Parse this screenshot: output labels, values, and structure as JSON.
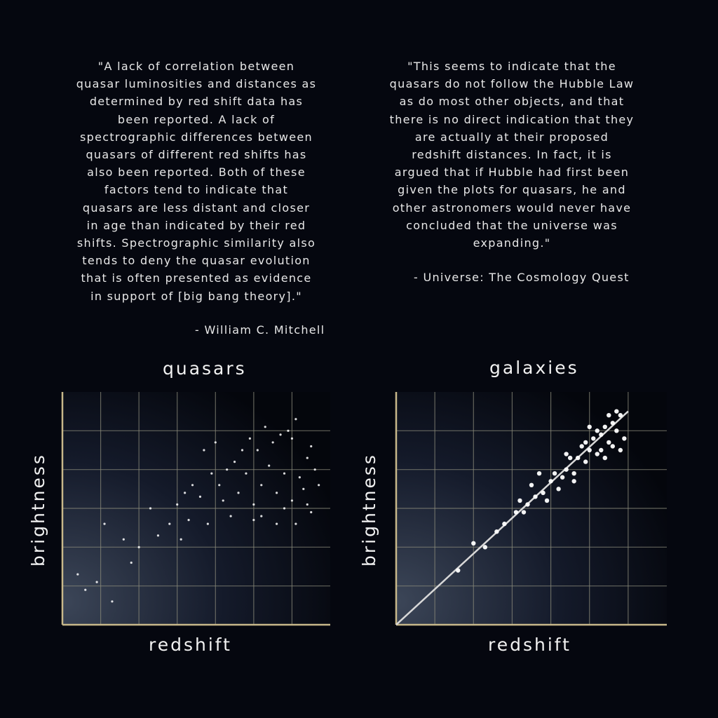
{
  "quotes": {
    "left": {
      "text": "\"A lack of correlation between\nquasar luminosities and distances as\ndetermined by red shift data has\nbeen reported. A lack of\nspectrographic differences between\nquasars of different red shifts has\nalso been reported. Both of these\nfactors tend to indicate that\nquasars are less distant and closer\nin age than indicated by their red\nshifts. Spectrographic similarity also\ntends to deny the quasar evolution\nthat is often presented as evidence\nin support of [big bang theory].\"",
      "attribution": "- William C. Mitchell"
    },
    "right": {
      "text": "\"This seems to indicate that the\nquasars do not follow the Hubble Law\nas do most other objects, and that\nthere is no direct indication that they\nare actually at their proposed\nredshift distances.  In fact, it is\nargued that if Hubble had first been\ngiven the plots for quasars, he and\nother astronomers would never have\nconcluded that the universe was\nexpanding.\"",
      "attribution": "- Universe: The Cosmology Quest"
    }
  },
  "colors": {
    "background": "#05070f",
    "grid": "#8a8a7a",
    "axis": "#c8b88a",
    "points": "#ffffff",
    "fit_line": "#d8d8d8"
  },
  "chart_data": [
    {
      "type": "scatter",
      "title": "quasars",
      "xlabel": "redshift",
      "ylabel": "brightness",
      "xlim": [
        0,
        7
      ],
      "ylim": [
        0,
        6
      ],
      "grid": true,
      "tick_labels": false,
      "series": [
        {
          "points": [
            [
              0.4,
              1.3
            ],
            [
              0.6,
              0.9
            ],
            [
              0.9,
              1.1
            ],
            [
              1.3,
              0.6
            ],
            [
              1.8,
              1.6
            ],
            [
              2.0,
              2.0
            ],
            [
              2.5,
              2.3
            ],
            [
              1.1,
              2.6
            ],
            [
              1.6,
              2.2
            ],
            [
              2.3,
              3.0
            ],
            [
              2.8,
              2.6
            ],
            [
              3.0,
              3.1
            ],
            [
              3.3,
              2.7
            ],
            [
              3.1,
              2.2
            ],
            [
              3.6,
              3.3
            ],
            [
              3.4,
              3.6
            ],
            [
              3.8,
              2.6
            ],
            [
              3.9,
              3.9
            ],
            [
              4.2,
              3.2
            ],
            [
              4.4,
              2.8
            ],
            [
              4.1,
              3.6
            ],
            [
              4.6,
              3.4
            ],
            [
              4.8,
              3.9
            ],
            [
              4.5,
              4.2
            ],
            [
              5.0,
              3.1
            ],
            [
              5.2,
              3.6
            ],
            [
              5.4,
              4.1
            ],
            [
              5.1,
              4.5
            ],
            [
              5.6,
              3.4
            ],
            [
              5.8,
              3.9
            ],
            [
              5.5,
              4.7
            ],
            [
              6.0,
              3.2
            ],
            [
              6.2,
              3.8
            ],
            [
              6.4,
              4.3
            ],
            [
              6.0,
              4.8
            ],
            [
              6.5,
              2.9
            ],
            [
              6.3,
              3.5
            ],
            [
              5.7,
              4.9
            ],
            [
              6.6,
              4.0
            ],
            [
              5.9,
              5.0
            ],
            [
              4.9,
              4.8
            ],
            [
              5.3,
              5.1
            ],
            [
              6.1,
              5.3
            ],
            [
              4.7,
              4.5
            ],
            [
              4.3,
              4.0
            ],
            [
              5.0,
              2.7
            ],
            [
              5.6,
              2.6
            ],
            [
              6.1,
              2.6
            ],
            [
              3.7,
              4.5
            ],
            [
              4.0,
              4.7
            ],
            [
              6.4,
              3.1
            ],
            [
              5.8,
              3.0
            ],
            [
              5.2,
              2.8
            ],
            [
              6.7,
              3.6
            ],
            [
              6.5,
              4.6
            ],
            [
              3.2,
              3.4
            ]
          ]
        }
      ]
    },
    {
      "type": "scatter",
      "title": "galaxies",
      "xlabel": "redshift",
      "ylabel": "brightness",
      "xlim": [
        0,
        7
      ],
      "ylim": [
        0,
        6
      ],
      "grid": true,
      "tick_labels": false,
      "fit_line": [
        [
          0,
          0
        ],
        [
          6.0,
          5.5
        ]
      ],
      "series": [
        {
          "points": [
            [
              1.6,
              1.4
            ],
            [
              2.0,
              2.1
            ],
            [
              2.6,
              2.4
            ],
            [
              2.8,
              2.6
            ],
            [
              3.1,
              2.9
            ],
            [
              3.2,
              3.2
            ],
            [
              3.4,
              3.1
            ],
            [
              3.6,
              3.3
            ],
            [
              3.5,
              3.6
            ],
            [
              3.8,
              3.4
            ],
            [
              4.0,
              3.7
            ],
            [
              4.1,
              3.9
            ],
            [
              4.2,
              3.5
            ],
            [
              4.4,
              4.0
            ],
            [
              4.5,
              4.3
            ],
            [
              4.3,
              3.8
            ],
            [
              4.6,
              3.9
            ],
            [
              4.7,
              4.3
            ],
            [
              4.8,
              4.6
            ],
            [
              4.9,
              4.2
            ],
            [
              5.0,
              4.5
            ],
            [
              5.1,
              4.8
            ],
            [
              5.2,
              4.4
            ],
            [
              5.3,
              4.9
            ],
            [
              5.4,
              5.1
            ],
            [
              5.2,
              5.0
            ],
            [
              5.5,
              4.7
            ],
            [
              5.6,
              5.2
            ],
            [
              5.7,
              5.0
            ],
            [
              5.8,
              5.4
            ],
            [
              5.6,
              4.6
            ],
            [
              5.9,
              4.8
            ],
            [
              5.5,
              5.4
            ],
            [
              5.3,
              4.5
            ],
            [
              4.9,
              4.7
            ],
            [
              3.9,
              3.2
            ],
            [
              3.3,
              2.9
            ],
            [
              4.6,
              3.7
            ],
            [
              5.8,
              4.5
            ],
            [
              5.0,
              5.1
            ],
            [
              5.7,
              5.5
            ],
            [
              4.4,
              4.4
            ],
            [
              2.3,
              2.0
            ],
            [
              5.4,
              4.3
            ],
            [
              3.7,
              3.9
            ]
          ]
        }
      ]
    }
  ]
}
